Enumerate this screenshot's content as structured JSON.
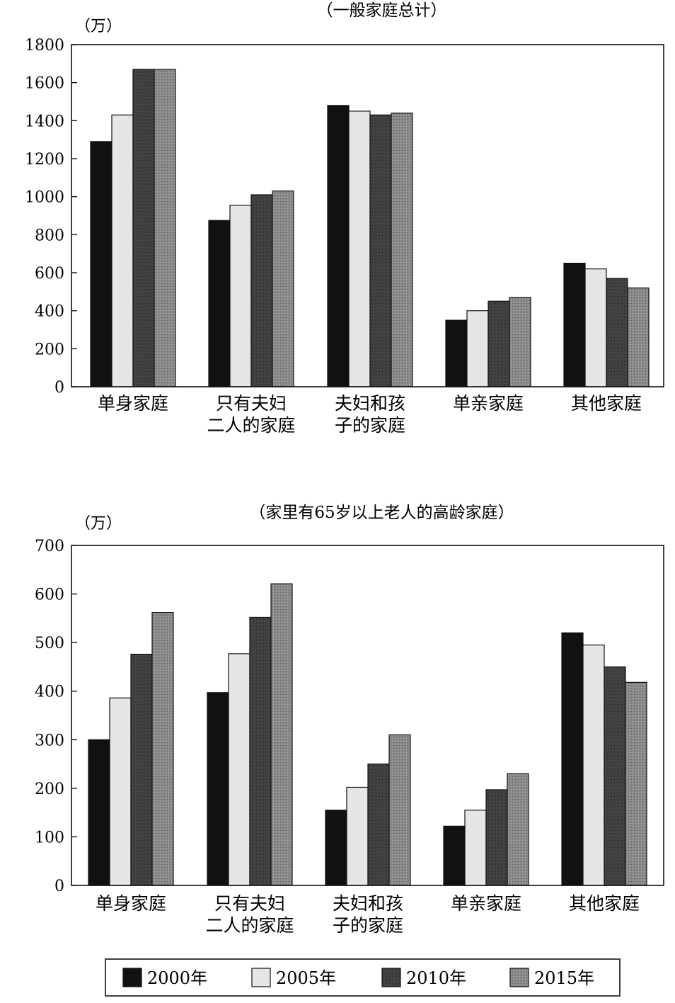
{
  "chart_data": [
    {
      "type": "bar",
      "title": "（一般家庭总计）",
      "ylabel": "（万）",
      "ylim": [
        0,
        1800
      ],
      "yticks": [
        0,
        200,
        400,
        600,
        800,
        1000,
        1200,
        1400,
        1600,
        1800
      ],
      "categories": [
        [
          "单身家庭"
        ],
        [
          "只有夫妇",
          "二人的家庭"
        ],
        [
          "夫妇和孩",
          "子的家庭"
        ],
        [
          "单亲家庭"
        ],
        [
          "其他家庭"
        ]
      ],
      "series": [
        {
          "name": "2000年",
          "values": [
            1290,
            875,
            1480,
            350,
            650
          ]
        },
        {
          "name": "2005年",
          "values": [
            1430,
            955,
            1450,
            400,
            620
          ]
        },
        {
          "name": "2010年",
          "values": [
            1670,
            1010,
            1430,
            450,
            570
          ]
        },
        {
          "name": "2015年",
          "values": [
            1670,
            1030,
            1440,
            470,
            520
          ]
        }
      ],
      "grid": false
    },
    {
      "type": "bar",
      "title": "（家里有65岁以上老人的高龄家庭）",
      "ylabel": "（万）",
      "ylim": [
        0,
        700
      ],
      "yticks": [
        0,
        100,
        200,
        300,
        400,
        500,
        600,
        700
      ],
      "categories": [
        [
          "单身家庭"
        ],
        [
          "只有夫妇",
          "二人的家庭"
        ],
        [
          "夫妇和孩",
          "子的家庭"
        ],
        [
          "单亲家庭"
        ],
        [
          "其他家庭"
        ]
      ],
      "series": [
        {
          "name": "2000年",
          "values": [
            300,
            397,
            155,
            122,
            520
          ]
        },
        {
          "name": "2005年",
          "values": [
            386,
            477,
            202,
            155,
            495
          ]
        },
        {
          "name": "2010年",
          "values": [
            476,
            552,
            250,
            197,
            450
          ]
        },
        {
          "name": "2015年",
          "values": [
            562,
            621,
            310,
            230,
            418
          ]
        }
      ],
      "grid": false
    }
  ],
  "legend": {
    "placement": "bottom",
    "items": [
      "2000年",
      "2005年",
      "2010年",
      "2015年"
    ]
  },
  "series_colors": [
    "#111111",
    "#e6e6e6",
    "#3c3c3c",
    "#8e8e8e"
  ]
}
